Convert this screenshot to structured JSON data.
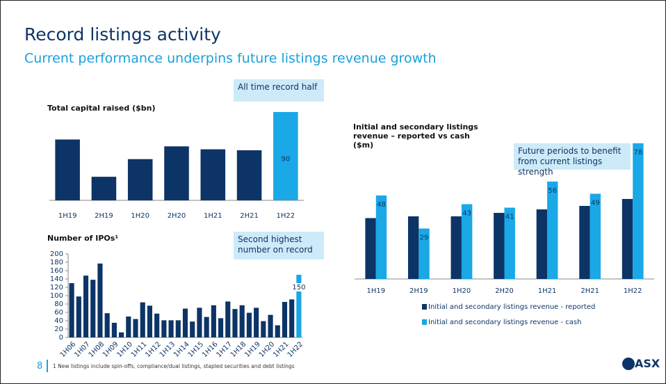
{
  "title": "Record listings activity",
  "subtitle": "Current performance underpins future listings revenue growth",
  "page_number": "8",
  "footnote": "1 New listings include spin-offs, compliance/dual listings, stapled securities and debt listings",
  "logo": "ASX",
  "chart_data": [
    {
      "type": "bar",
      "title": "Total capital raised ($bn)",
      "annotation": "All time record half",
      "categories": [
        "1H19",
        "2H19",
        "1H20",
        "2H20",
        "1H21",
        "2H21",
        "1H22"
      ],
      "values": [
        62,
        24,
        42,
        55,
        52,
        51,
        90
      ],
      "colors": [
        "#0d3466",
        "#0d3466",
        "#0d3466",
        "#0d3466",
        "#0d3466",
        "#0d3466",
        "#1aa8e6"
      ],
      "ylim": [
        0,
        90
      ],
      "data_labels": true
    },
    {
      "type": "bar",
      "title": "Number of IPOs¹",
      "annotation": "Second highest number on record",
      "categories": [
        "1H06",
        null,
        "1H07",
        null,
        "1H08",
        null,
        "1H09",
        null,
        "1H10",
        null,
        "1H11",
        null,
        "1H12",
        null,
        "1H13",
        null,
        "1H14",
        null,
        "1H15",
        null,
        "1H16",
        null,
        "1H17",
        null,
        "1H18",
        null,
        "1H19",
        null,
        "1H20",
        null,
        "1H21",
        null,
        "1H22"
      ],
      "values": [
        130,
        98,
        148,
        138,
        177,
        58,
        35,
        12,
        50,
        44,
        84,
        76,
        57,
        41,
        41,
        41,
        69,
        38,
        71,
        49,
        77,
        46,
        86,
        68,
        77,
        59,
        71,
        39,
        54,
        29,
        85,
        91,
        150
      ],
      "colors": [
        "#0d3466",
        "#0d3466",
        "#0d3466",
        "#0d3466",
        "#0d3466",
        "#0d3466",
        "#0d3466",
        "#0d3466",
        "#0d3466",
        "#0d3466",
        "#0d3466",
        "#0d3466",
        "#0d3466",
        "#0d3466",
        "#0d3466",
        "#0d3466",
        "#0d3466",
        "#0d3466",
        "#0d3466",
        "#0d3466",
        "#0d3466",
        "#0d3466",
        "#0d3466",
        "#0d3466",
        "#0d3466",
        "#0d3466",
        "#0d3466",
        "#0d3466",
        "#0d3466",
        "#0d3466",
        "#0d3466",
        "#0d3466",
        "#1aa8e6"
      ],
      "ylim": [
        0,
        200
      ],
      "yticks": [
        0,
        20,
        40,
        60,
        80,
        100,
        120,
        140,
        160,
        180,
        200
      ],
      "label_last": true
    },
    {
      "type": "grouped_bar",
      "title": "Initial and secondary listings revenue – reported vs cash ($m)",
      "annotation": "Future periods to benefit from current listings strength",
      "categories": [
        "1H19",
        "2H19",
        "1H20",
        "2H20",
        "1H21",
        "2H21",
        "1H22"
      ],
      "series": [
        {
          "name": "Initial and secondary listings revenue - reported",
          "color": "#0d3466",
          "values": [
            35,
            36,
            36,
            38,
            40,
            42,
            46
          ]
        },
        {
          "name": "Initial and secondary listings revenue - cash",
          "color": "#1aa8e6",
          "values": [
            48,
            29,
            43,
            41,
            56,
            49,
            78
          ]
        }
      ],
      "ylim": [
        0,
        80
      ],
      "data_labels": true
    }
  ]
}
